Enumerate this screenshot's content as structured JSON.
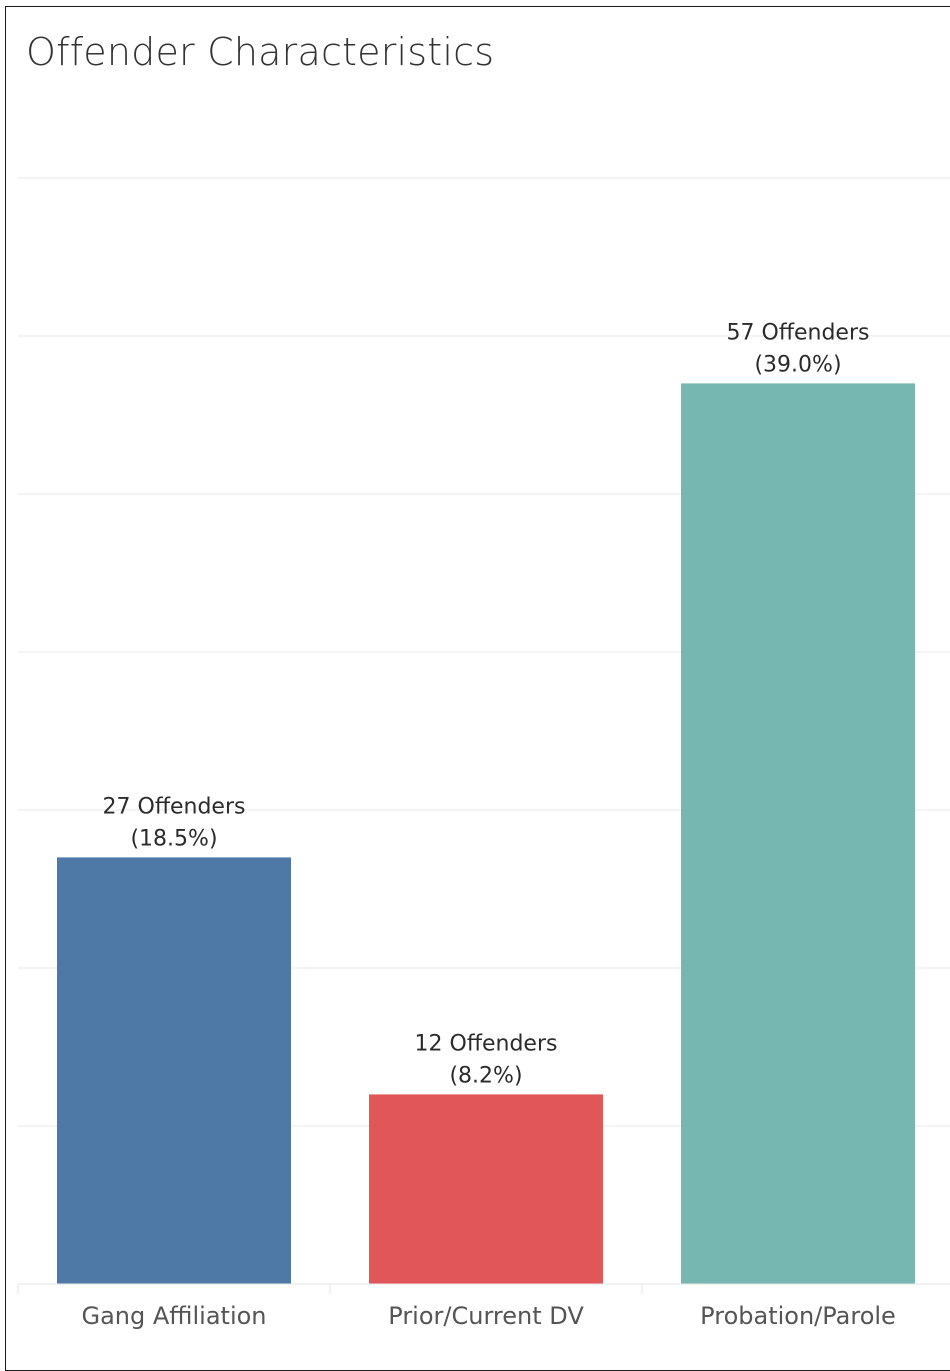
{
  "title": "Offender Characteristics",
  "chart_data": {
    "type": "bar",
    "title": "Offender Characteristics",
    "xlabel": "",
    "ylabel": "",
    "categories": [
      "Gang Affiliation",
      "Prior/Current DV",
      "Probation/Parole"
    ],
    "values": [
      27,
      12,
      57
    ],
    "percentages": [
      "18.5%",
      "8.2%",
      "39.0%"
    ],
    "data_labels": [
      [
        "27 Offenders",
        "(18.5%)"
      ],
      [
        "12 Offenders",
        "(8.2%)"
      ],
      [
        "57 Offenders",
        "(39.0%)"
      ]
    ],
    "colors": [
      "#4e79a7",
      "#e15759",
      "#76b7b2"
    ],
    "ylim": [
      0,
      75
    ],
    "y_gridlines": [
      10,
      20,
      30,
      40,
      50,
      60,
      70
    ],
    "grid": true,
    "legend": "none"
  }
}
